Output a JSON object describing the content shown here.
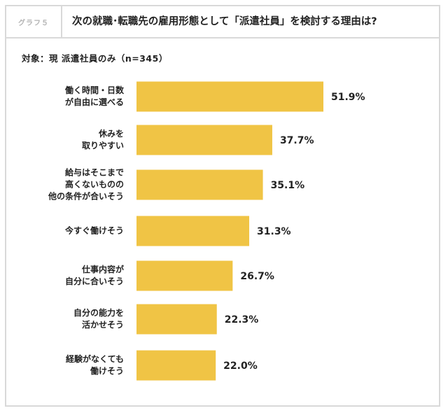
{
  "header": {
    "tag": "グラフ５",
    "title": "次の就職･転職先の雇用形態として「派遣社員」を検討する理由は?"
  },
  "subject": "対象：現 派遣社員のみ（n=345）",
  "colors": {
    "bar": "#f0c445",
    "border": "#d9d9d9",
    "text": "#222222"
  },
  "chart_data": {
    "type": "bar",
    "orientation": "horizontal",
    "title": "次の就職･転職先の雇用形態として「派遣社員」を検討する理由は?",
    "unit": "%",
    "categories": [
      [
        "働く時間・日数",
        "が自由に選べる"
      ],
      [
        "休みを",
        "取りやすい"
      ],
      [
        "給与はそこまで",
        "高くないものの",
        "他の条件が合いそう"
      ],
      [
        "今すぐ働けそう"
      ],
      [
        "仕事内容が",
        "自分に合いそう"
      ],
      [
        "自分の能力を",
        "活かせそう"
      ],
      [
        "経験がなくても",
        "働けそう"
      ]
    ],
    "values": [
      51.9,
      37.7,
      35.1,
      31.3,
      26.7,
      22.3,
      22.0
    ],
    "value_labels": [
      "51.9%",
      "37.7%",
      "35.1%",
      "31.3%",
      "26.7%",
      "22.3%",
      "22.0%"
    ],
    "xlim": [
      0,
      60
    ]
  }
}
